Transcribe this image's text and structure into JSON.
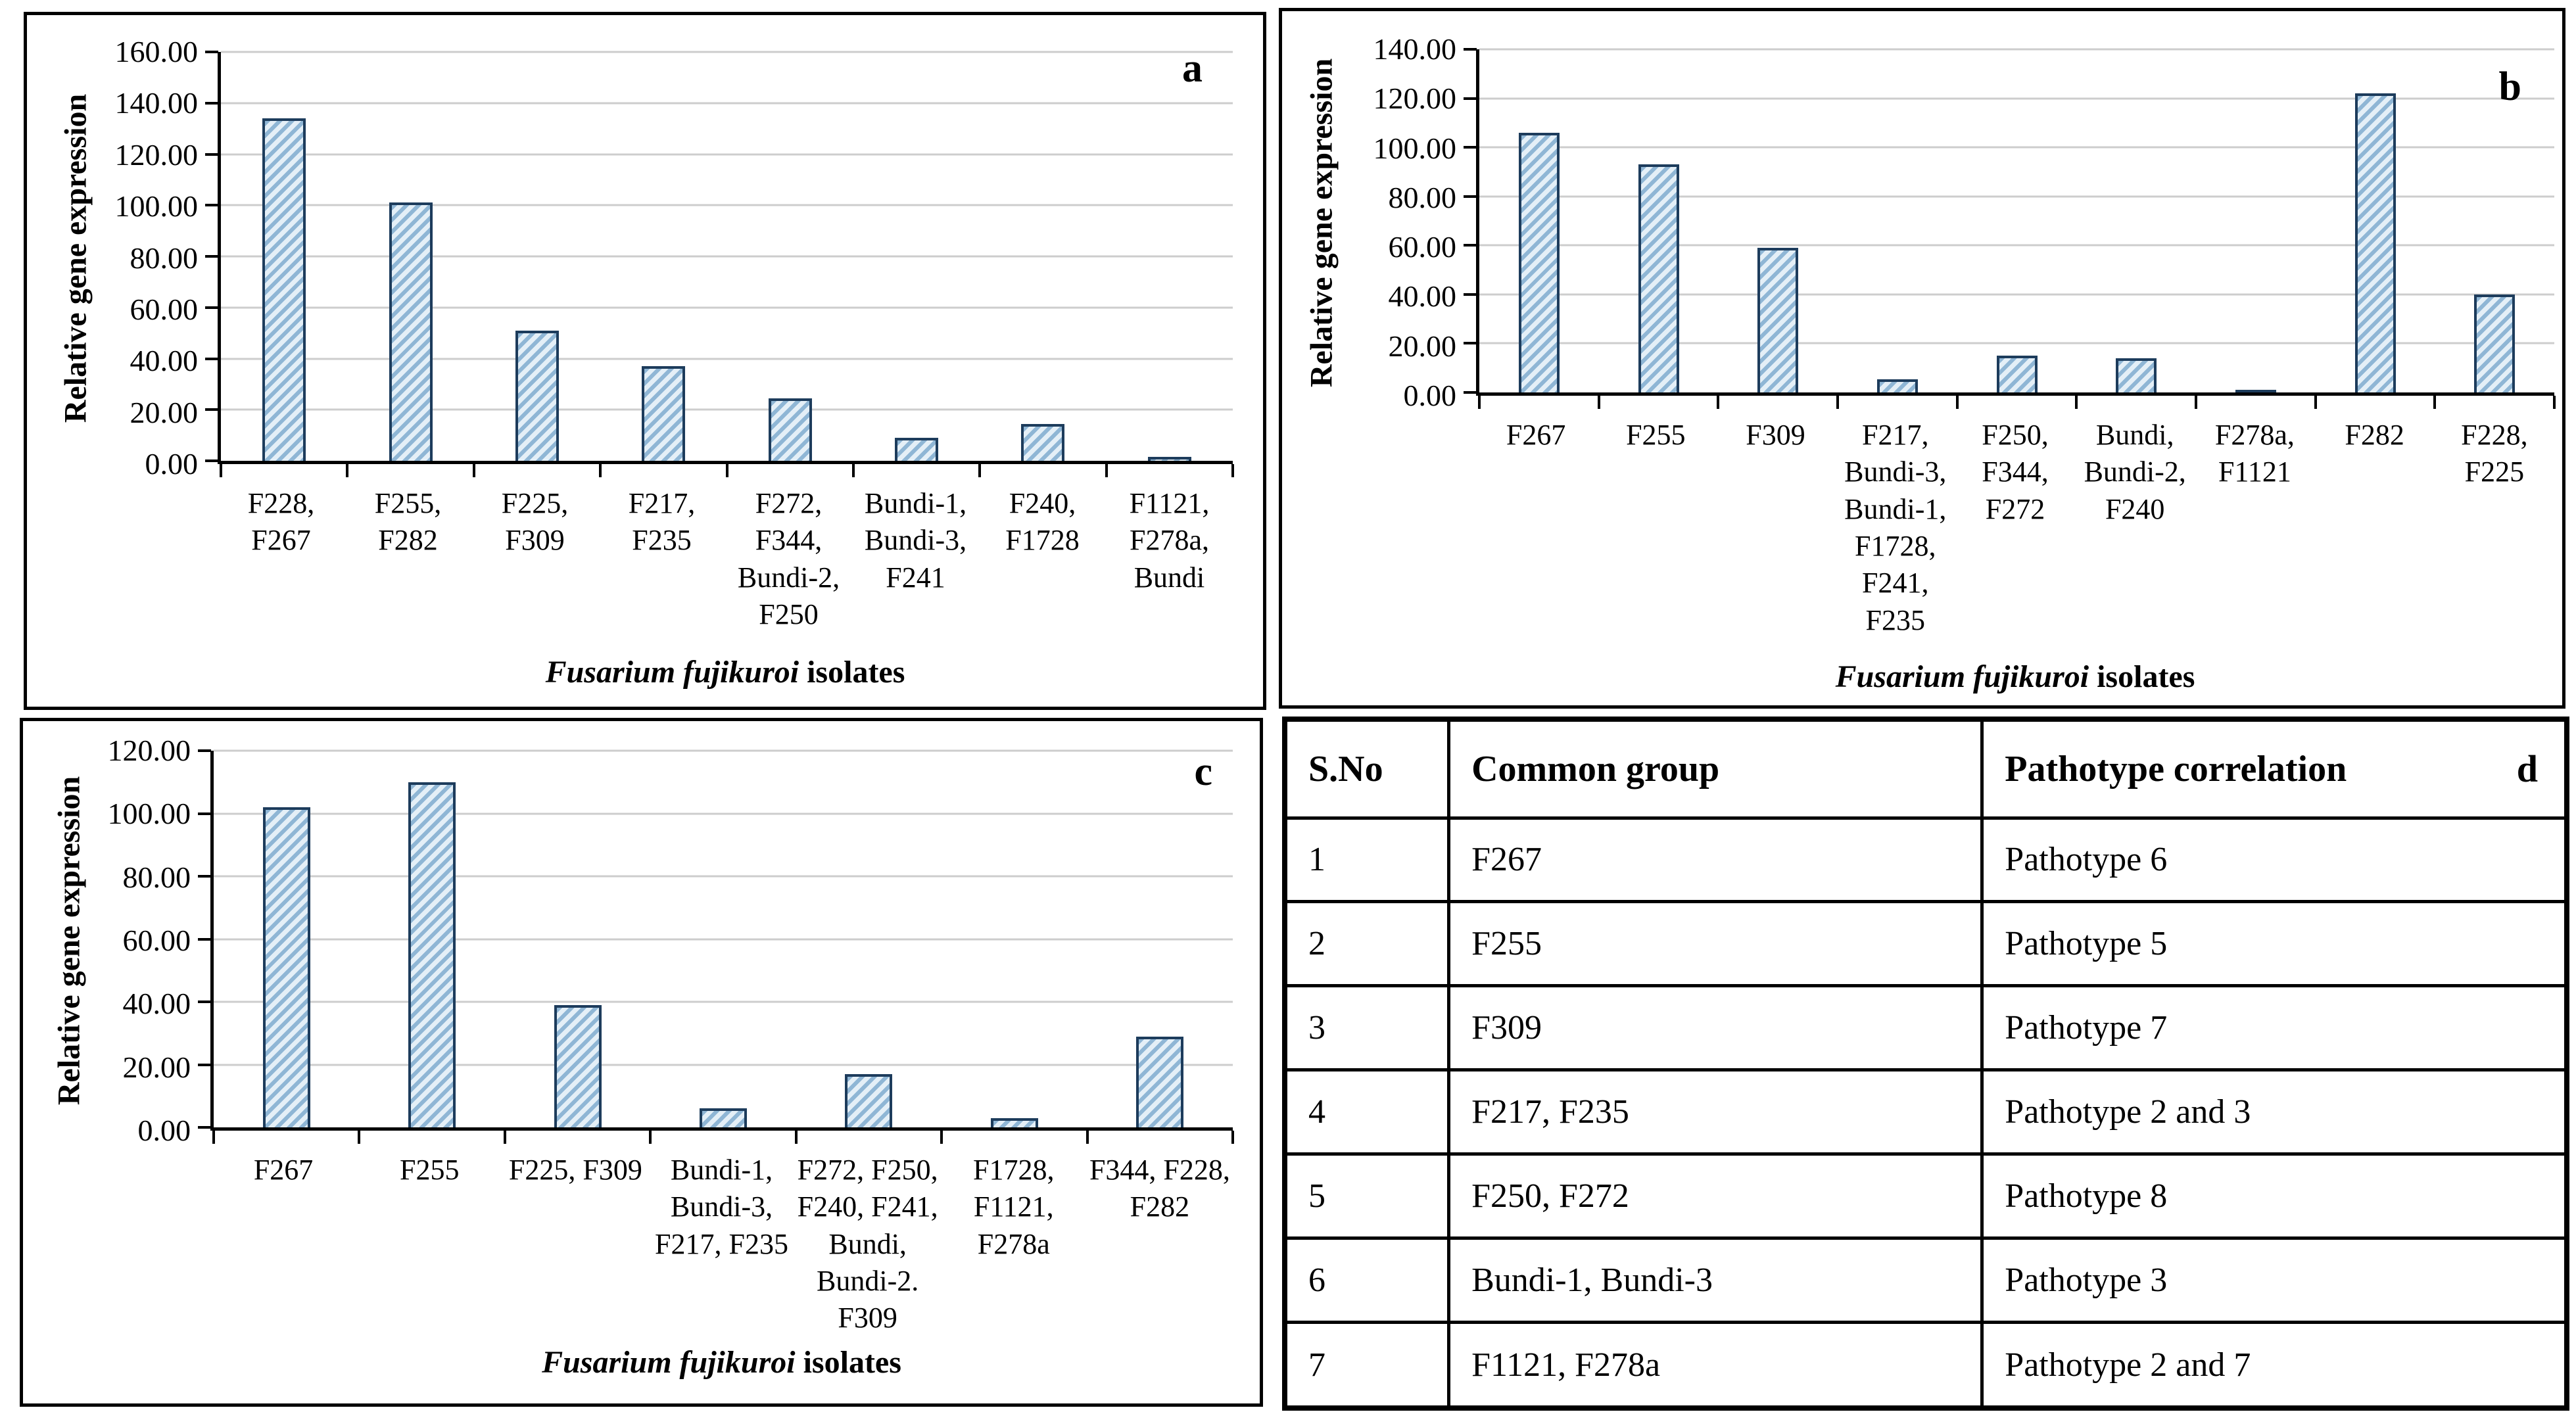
{
  "colors": {
    "bar_fill": "#e4eff7",
    "bar_stripe": "#8fb6d5",
    "bar_border": "#1d3c5c",
    "gridline": "#cdcdcd"
  },
  "chart_data": [
    {
      "type": "bar",
      "panel": "a",
      "ylabel": "Relative gene expression",
      "xlabel_italic": "Fusarium fujikuroi",
      "xlabel_regular": " isolates",
      "ylim": [
        0,
        160
      ],
      "ytick_step": 20,
      "grid": true,
      "categories": [
        [
          "F228,",
          "F267"
        ],
        [
          "F255,",
          "F282"
        ],
        [
          "F225,",
          "F309"
        ],
        [
          "F217,",
          "F235"
        ],
        [
          "F272,",
          "F344,",
          "Bundi-2,",
          "F250"
        ],
        [
          "Bundi-1,",
          "Bundi-3,",
          "F241"
        ],
        [
          "F240,",
          "F1728"
        ],
        [
          "F1121,",
          "F278a,",
          "Bundi"
        ]
      ],
      "values": [
        134,
        101,
        51,
        37,
        24.5,
        9,
        14.5,
        1.5
      ]
    },
    {
      "type": "bar",
      "panel": "b",
      "ylabel": "Relative gene expression",
      "xlabel_italic": "Fusarium fujikuroi",
      "xlabel_regular": " isolates",
      "ylim": [
        0,
        140
      ],
      "ytick_step": 20,
      "grid": true,
      "categories": [
        [
          "F267"
        ],
        [
          "F255"
        ],
        [
          "F309"
        ],
        [
          "F217,",
          "Bundi-3,",
          "Bundi-1,",
          "F1728,",
          "F241,",
          "F235"
        ],
        [
          "F250,",
          "F344,",
          "F272"
        ],
        [
          "Bundi,",
          "Bundi-2,",
          "F240"
        ],
        [
          "F278a,",
          "F1121"
        ],
        [
          "F282"
        ],
        [
          "F228,",
          "F225"
        ]
      ],
      "values": [
        106,
        93,
        59,
        5.5,
        15,
        14,
        0.4,
        122,
        40
      ]
    },
    {
      "type": "bar",
      "panel": "c",
      "ylabel": "Relative gene expression",
      "xlabel_italic": "Fusarium fujikuroi",
      "xlabel_regular": " isolates",
      "ylim": [
        0,
        120
      ],
      "ytick_step": 20,
      "grid": true,
      "categories": [
        [
          "F267"
        ],
        [
          "F255"
        ],
        [
          "F225, F309"
        ],
        [
          "Bundi-1,",
          "Bundi-3,",
          "F217, F235"
        ],
        [
          "F272, F250,",
          "F240, F241,",
          "Bundi,",
          "Bundi-2.",
          "F309"
        ],
        [
          "F1728,",
          "F1121,",
          "F278a"
        ],
        [
          "F344, F228,",
          "F282"
        ]
      ],
      "values": [
        102,
        110,
        39,
        6,
        17,
        3,
        29
      ]
    },
    {
      "type": "table",
      "panel": "d",
      "headers": [
        "S.No",
        "Common group",
        "Pathotype correlation"
      ],
      "rows": [
        [
          "1",
          "F267",
          "Pathotype 6"
        ],
        [
          "2",
          "F255",
          "Pathotype 5"
        ],
        [
          "3",
          "F309",
          "Pathotype 7"
        ],
        [
          "4",
          "F217, F235",
          "Pathotype 2 and 3"
        ],
        [
          "5",
          "F250, F272",
          "Pathotype 8"
        ],
        [
          "6",
          "Bundi-1, Bundi-3",
          "Pathotype 3"
        ],
        [
          "7",
          "F1121, F278a",
          "Pathotype 2 and 7"
        ]
      ]
    }
  ]
}
